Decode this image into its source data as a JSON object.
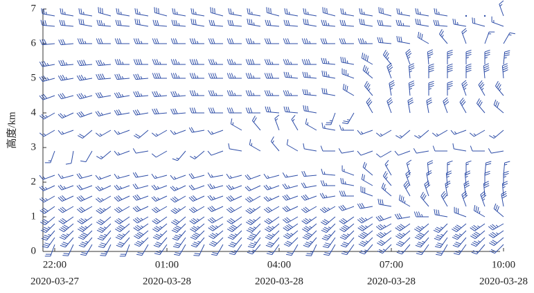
{
  "chart_data": {
    "type": "wind-barb",
    "y_label": "高度/km",
    "categories": [
      "22:00",
      null,
      null,
      null,
      null,
      null,
      "01:00",
      null,
      null,
      null,
      null,
      null,
      "04:00",
      null,
      null,
      null,
      null,
      null,
      "07:00",
      null,
      null,
      null,
      null,
      null,
      "10:00"
    ],
    "category_dates": [
      "2020-03-27",
      null,
      null,
      null,
      null,
      null,
      "2020-03-28",
      null,
      null,
      null,
      null,
      null,
      "2020-03-28",
      null,
      null,
      null,
      null,
      null,
      "2020-03-28",
      null,
      null,
      null,
      null,
      null,
      "2020-03-28"
    ],
    "ylim": [
      0,
      7
    ],
    "yticks": [
      0,
      1,
      2,
      3,
      4,
      5,
      6,
      7
    ],
    "color": "#2b4ba6",
    "levels": [
      {
        "height": 0.2,
        "direction": [
          200,
          205,
          210,
          205,
          200,
          210,
          215,
          210,
          205,
          210,
          215,
          220,
          215,
          210,
          205,
          210,
          215,
          220,
          225,
          220,
          215,
          210,
          215,
          220,
          225
        ],
        "speed": [
          8,
          8,
          10,
          10,
          8,
          8,
          10,
          10,
          8,
          8,
          10,
          10,
          8,
          8,
          10,
          10,
          8,
          10,
          10,
          8,
          8,
          10,
          10,
          8,
          8
        ]
      },
      {
        "height": 0.4,
        "direction": [
          215,
          220,
          220,
          215,
          220,
          225,
          220,
          215,
          220,
          225,
          220,
          215,
          220,
          225,
          220,
          215,
          220,
          225,
          230,
          225,
          220,
          215,
          220,
          225,
          230
        ],
        "speed": [
          12,
          12,
          14,
          12,
          12,
          14,
          12,
          12,
          14,
          12,
          12,
          14,
          12,
          12,
          14,
          12,
          12,
          14,
          12,
          12,
          14,
          12,
          12,
          14,
          12
        ]
      },
      {
        "height": 0.6,
        "direction": [
          220,
          225,
          225,
          220,
          225,
          230,
          225,
          220,
          225,
          230,
          225,
          220,
          225,
          230,
          225,
          220,
          225,
          230,
          235,
          230,
          225,
          220,
          225,
          230,
          235
        ],
        "speed": [
          14,
          14,
          16,
          14,
          14,
          16,
          14,
          14,
          16,
          14,
          14,
          16,
          14,
          14,
          16,
          14,
          14,
          16,
          14,
          14,
          16,
          14,
          14,
          16,
          14
        ]
      },
      {
        "height": 0.8,
        "direction": [
          225,
          230,
          230,
          225,
          230,
          235,
          230,
          225,
          230,
          235,
          230,
          225,
          230,
          235,
          230,
          225,
          230,
          235,
          240,
          235,
          230,
          225,
          230,
          235,
          240
        ],
        "speed": [
          14,
          16,
          14,
          14,
          16,
          14,
          14,
          16,
          14,
          14,
          16,
          14,
          14,
          16,
          14,
          14,
          16,
          14,
          14,
          16,
          14,
          14,
          16,
          14,
          14
        ]
      },
      {
        "height": 1.0,
        "direction": [
          230,
          235,
          235,
          230,
          235,
          240,
          235,
          230,
          235,
          240,
          235,
          230,
          235,
          240,
          235,
          230,
          235,
          240,
          250,
          260,
          270,
          280,
          290,
          300,
          310
        ],
        "speed": [
          12,
          12,
          14,
          12,
          12,
          14,
          12,
          12,
          14,
          12,
          12,
          14,
          12,
          12,
          14,
          12,
          12,
          14,
          12,
          12,
          14,
          12,
          12,
          14,
          12
        ]
      },
      {
        "height": 1.3,
        "direction": [
          235,
          240,
          240,
          235,
          240,
          245,
          240,
          235,
          240,
          245,
          240,
          235,
          240,
          245,
          240,
          240,
          250,
          260,
          280,
          300,
          320,
          330,
          340,
          340,
          350
        ],
        "speed": [
          12,
          12,
          12,
          14,
          12,
          12,
          12,
          14,
          12,
          12,
          12,
          14,
          12,
          12,
          12,
          14,
          12,
          12,
          12,
          14,
          12,
          12,
          12,
          14,
          12
        ]
      },
      {
        "height": 1.6,
        "direction": [
          240,
          245,
          245,
          240,
          245,
          250,
          245,
          240,
          245,
          250,
          245,
          240,
          245,
          250,
          250,
          260,
          270,
          290,
          310,
          330,
          340,
          350,
          350,
          355,
          355
        ],
        "speed": [
          10,
          12,
          12,
          10,
          12,
          12,
          10,
          12,
          12,
          10,
          12,
          12,
          10,
          12,
          12,
          10,
          12,
          12,
          10,
          12,
          12,
          10,
          12,
          12,
          10
        ]
      },
      {
        "height": 1.9,
        "direction": [
          245,
          250,
          250,
          245,
          250,
          255,
          250,
          245,
          250,
          255,
          250,
          245,
          250,
          255,
          260,
          270,
          280,
          300,
          320,
          340,
          350,
          355,
          355,
          0,
          0
        ],
        "speed": [
          10,
          10,
          8,
          10,
          10,
          8,
          10,
          10,
          8,
          10,
          10,
          8,
          10,
          10,
          8,
          10,
          10,
          8,
          10,
          10,
          8,
          10,
          10,
          8,
          10
        ]
      },
      {
        "height": 2.2,
        "direction": [
          250,
          255,
          255,
          250,
          255,
          260,
          255,
          250,
          255,
          260,
          255,
          250,
          255,
          260,
          265,
          275,
          290,
          310,
          330,
          345,
          355,
          0,
          0,
          5,
          5
        ],
        "speed": [
          6,
          6,
          8,
          6,
          6,
          8,
          6,
          6,
          8,
          6,
          6,
          8,
          6,
          6,
          8,
          6,
          6,
          8,
          6,
          6,
          8,
          6,
          6,
          8,
          6
        ]
      },
      {
        "height": 2.9,
        "direction": [
          200,
          190,
          210,
          230,
          250,
          260,
          240,
          220,
          230,
          250,
          280,
          300,
          320,
          300,
          280,
          270,
          260,
          250,
          240,
          250,
          260,
          270,
          280,
          270,
          260
        ],
        "speed": [
          6,
          4,
          4,
          6,
          6,
          4,
          4,
          6,
          6,
          4,
          4,
          6,
          6,
          4,
          4,
          4,
          4,
          4,
          4,
          4,
          4,
          4,
          4,
          4,
          4
        ]
      },
      {
        "height": 3.5,
        "direction": [
          240,
          250,
          230,
          240,
          250,
          230,
          240,
          250,
          260,
          250,
          300,
          320,
          340,
          330,
          300,
          280,
          270,
          250,
          240,
          230,
          230,
          240,
          250,
          240,
          230
        ],
        "speed": [
          6,
          6,
          8,
          6,
          6,
          8,
          6,
          6,
          8,
          6,
          6,
          8,
          6,
          6,
          6,
          6,
          6,
          6,
          6,
          6,
          6,
          6,
          6,
          6,
          6
        ]
      },
      {
        "height": 4.0,
        "direction": [
          240,
          245,
          250,
          255,
          260,
          260,
          265,
          265,
          270,
          270,
          270,
          270,
          275,
          275,
          280,
          200,
          210,
          330,
          340,
          350,
          350,
          340,
          330,
          320,
          310
        ],
        "speed": [
          10,
          10,
          12,
          10,
          12,
          12,
          12,
          12,
          12,
          12,
          12,
          12,
          12,
          12,
          12,
          10,
          10,
          12,
          12,
          12,
          12,
          12,
          12,
          12,
          12
        ]
      },
      {
        "height": 4.5,
        "direction": [
          250,
          255,
          255,
          260,
          260,
          265,
          265,
          265,
          270,
          270,
          270,
          270,
          270,
          270,
          275,
          280,
          300,
          320,
          350,
          355,
          0,
          0,
          340,
          330,
          320
        ],
        "speed": [
          12,
          12,
          14,
          12,
          14,
          14,
          14,
          14,
          14,
          14,
          14,
          14,
          14,
          14,
          14,
          12,
          12,
          14,
          14,
          14,
          14,
          14,
          14,
          14,
          14
        ]
      },
      {
        "height": 5.0,
        "direction": [
          255,
          260,
          260,
          265,
          265,
          265,
          270,
          270,
          270,
          270,
          270,
          270,
          270,
          275,
          275,
          280,
          290,
          310,
          340,
          355,
          0,
          0,
          0,
          355,
          355
        ],
        "speed": [
          14,
          14,
          14,
          16,
          14,
          14,
          16,
          14,
          14,
          16,
          14,
          14,
          16,
          14,
          14,
          14,
          14,
          14,
          14,
          14,
          16,
          16,
          16,
          16,
          16
        ]
      },
      {
        "height": 5.4,
        "direction": [
          260,
          265,
          265,
          265,
          270,
          270,
          270,
          270,
          270,
          270,
          270,
          270,
          270,
          270,
          270,
          275,
          280,
          300,
          320,
          340,
          355,
          0,
          0,
          0,
          5
        ],
        "speed": [
          14,
          14,
          16,
          14,
          14,
          16,
          14,
          14,
          16,
          14,
          14,
          16,
          14,
          14,
          16,
          14,
          14,
          16,
          14,
          14,
          14,
          14,
          14,
          14,
          14
        ]
      },
      {
        "height": 6.0,
        "direction": [
          265,
          265,
          270,
          270,
          270,
          270,
          270,
          270,
          270,
          270,
          270,
          270,
          270,
          270,
          270,
          270,
          270,
          270,
          275,
          280,
          300,
          320,
          340,
          20,
          30
        ],
        "speed": [
          12,
          12,
          14,
          12,
          12,
          14,
          12,
          12,
          14,
          12,
          12,
          14,
          12,
          12,
          14,
          12,
          12,
          14,
          12,
          12,
          12,
          10,
          8,
          6,
          6
        ]
      },
      {
        "height": 6.5,
        "direction": [
          275,
          275,
          280,
          275,
          275,
          280,
          275,
          275,
          280,
          275,
          275,
          280,
          275,
          275,
          280,
          275,
          275,
          280,
          275,
          275,
          280,
          275,
          280,
          285,
          290
        ],
        "speed": [
          12,
          12,
          12,
          14,
          12,
          12,
          12,
          14,
          12,
          12,
          12,
          14,
          12,
          12,
          12,
          14,
          12,
          12,
          12,
          14,
          12,
          12,
          10,
          8,
          6
        ]
      },
      {
        "height": 6.8,
        "direction": [
          280,
          280,
          280,
          285,
          280,
          280,
          285,
          280,
          280,
          285,
          280,
          280,
          285,
          280,
          280,
          285,
          280,
          280,
          285,
          280,
          280,
          280,
          280,
          280,
          340
        ],
        "speed": [
          10,
          10,
          10,
          12,
          10,
          10,
          12,
          10,
          10,
          12,
          10,
          10,
          12,
          10,
          10,
          12,
          10,
          10,
          12,
          10,
          10,
          10,
          1,
          1,
          6
        ]
      }
    ]
  }
}
